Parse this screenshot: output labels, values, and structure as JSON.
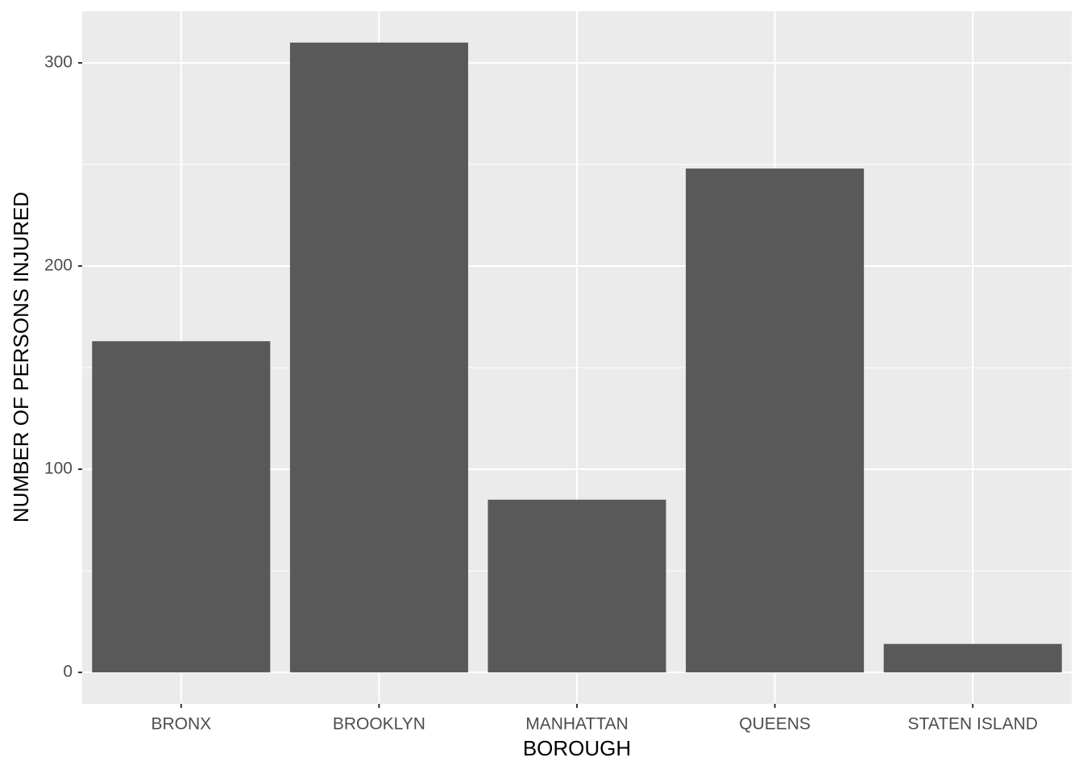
{
  "chart_data": {
    "type": "bar",
    "x_label": "BOROUGH",
    "y_label": "NUMBER OF PERSONS INJURED",
    "categories": [
      "BRONX",
      "BROOKLYN",
      "MANHATTAN",
      "QUEENS",
      "STATEN ISLAND"
    ],
    "values": [
      163,
      310,
      85,
      248,
      14
    ],
    "color": "#595959",
    "ylim": [
      -15.5,
      325.4
    ],
    "yticks": [
      0,
      100,
      200,
      300
    ],
    "grid": true
  }
}
